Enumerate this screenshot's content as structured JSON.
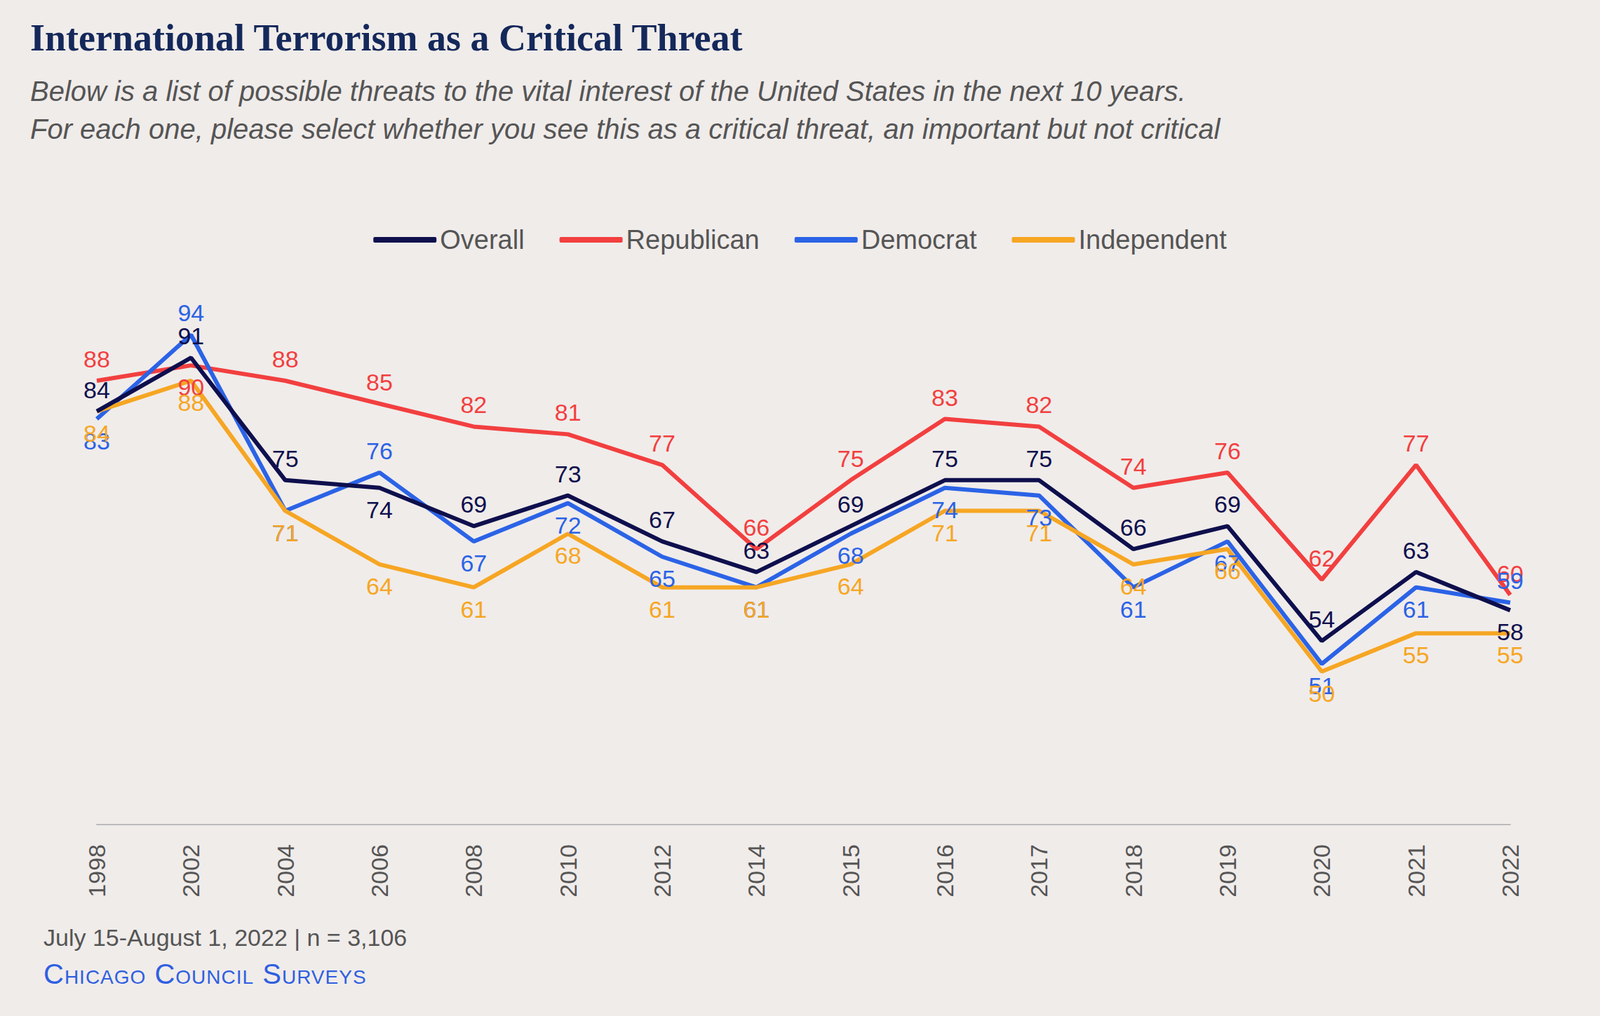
{
  "chart_data": {
    "type": "line",
    "title": "International Terrorism as a Critical Threat",
    "subtitle": "Below is a list of possible threats to the vital interest of the United States in the next 10 years.\nFor each one, please select whether you see this as a critical threat, an important but not critical",
    "note": "July 15-August 1, 2022 | n = 3,106",
    "source": "Chicago Council Surveys",
    "categories": [
      "1998",
      "2002",
      "2004",
      "2006",
      "2008",
      "2010",
      "2012",
      "2014",
      "2015",
      "2016",
      "2017",
      "2018",
      "2019",
      "2020",
      "2021",
      "2022"
    ],
    "series": [
      {
        "name": "Overall",
        "color": "#0e0f4d",
        "values": [
          84,
          91,
          75,
          74,
          69,
          73,
          67,
          63,
          69,
          75,
          75,
          66,
          69,
          54,
          63,
          58
        ]
      },
      {
        "name": "Republican",
        "color": "#f23f3f",
        "values": [
          88,
          90,
          88,
          85,
          82,
          81,
          77,
          66,
          75,
          83,
          82,
          74,
          76,
          62,
          77,
          60
        ]
      },
      {
        "name": "Democrat",
        "color": "#2b63e6",
        "values": [
          83,
          94,
          71,
          76,
          67,
          72,
          65,
          61,
          68,
          74,
          73,
          61,
          67,
          51,
          61,
          59
        ]
      },
      {
        "name": "Independent",
        "color": "#f6a623",
        "values": [
          84,
          88,
          71,
          64,
          61,
          68,
          61,
          61,
          64,
          71,
          71,
          64,
          66,
          50,
          55,
          55
        ]
      }
    ],
    "ylim": [
      30,
      100
    ],
    "yticks": [],
    "grid": false,
    "legend": "top",
    "data_labels": true,
    "tick_labels": "x"
  }
}
